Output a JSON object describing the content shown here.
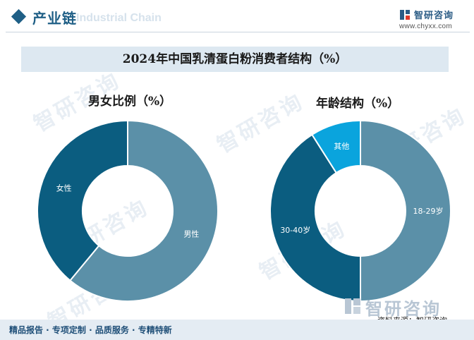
{
  "header": {
    "title": "产业链",
    "subtitle": "Industrial Chain"
  },
  "brand": {
    "name": "智研咨询",
    "url": "www.chyxx.com"
  },
  "watermark": {
    "text": "智研咨询"
  },
  "footer": {
    "tagline": "精品报告 · 专项定制 · 品质服务 · 专精特新",
    "source": "资料来源：智研咨询"
  },
  "colors": {
    "accent": "#1f5f86",
    "dark": "#0b5d80",
    "light": "#5b90a8",
    "bright": "#0aa4dd"
  },
  "chart_data": [
    {
      "type": "pie",
      "title": "2024年中国乳清蛋白粉消费者结构（%）",
      "subtitle": "男女比例（%）",
      "donut": true,
      "categories": [
        "男性",
        "女性"
      ],
      "values": [
        61,
        39
      ],
      "colors": [
        "#5b90a8",
        "#0b5d80"
      ]
    },
    {
      "type": "pie",
      "title": "2024年中国乳清蛋白粉消费者结构（%）",
      "subtitle": "年龄结构（%）",
      "donut": true,
      "categories": [
        "18-29岁",
        "30-40岁",
        "其他"
      ],
      "values": [
        50,
        41,
        9
      ],
      "colors": [
        "#5b90a8",
        "#0b5d80",
        "#0aa4dd"
      ]
    }
  ]
}
